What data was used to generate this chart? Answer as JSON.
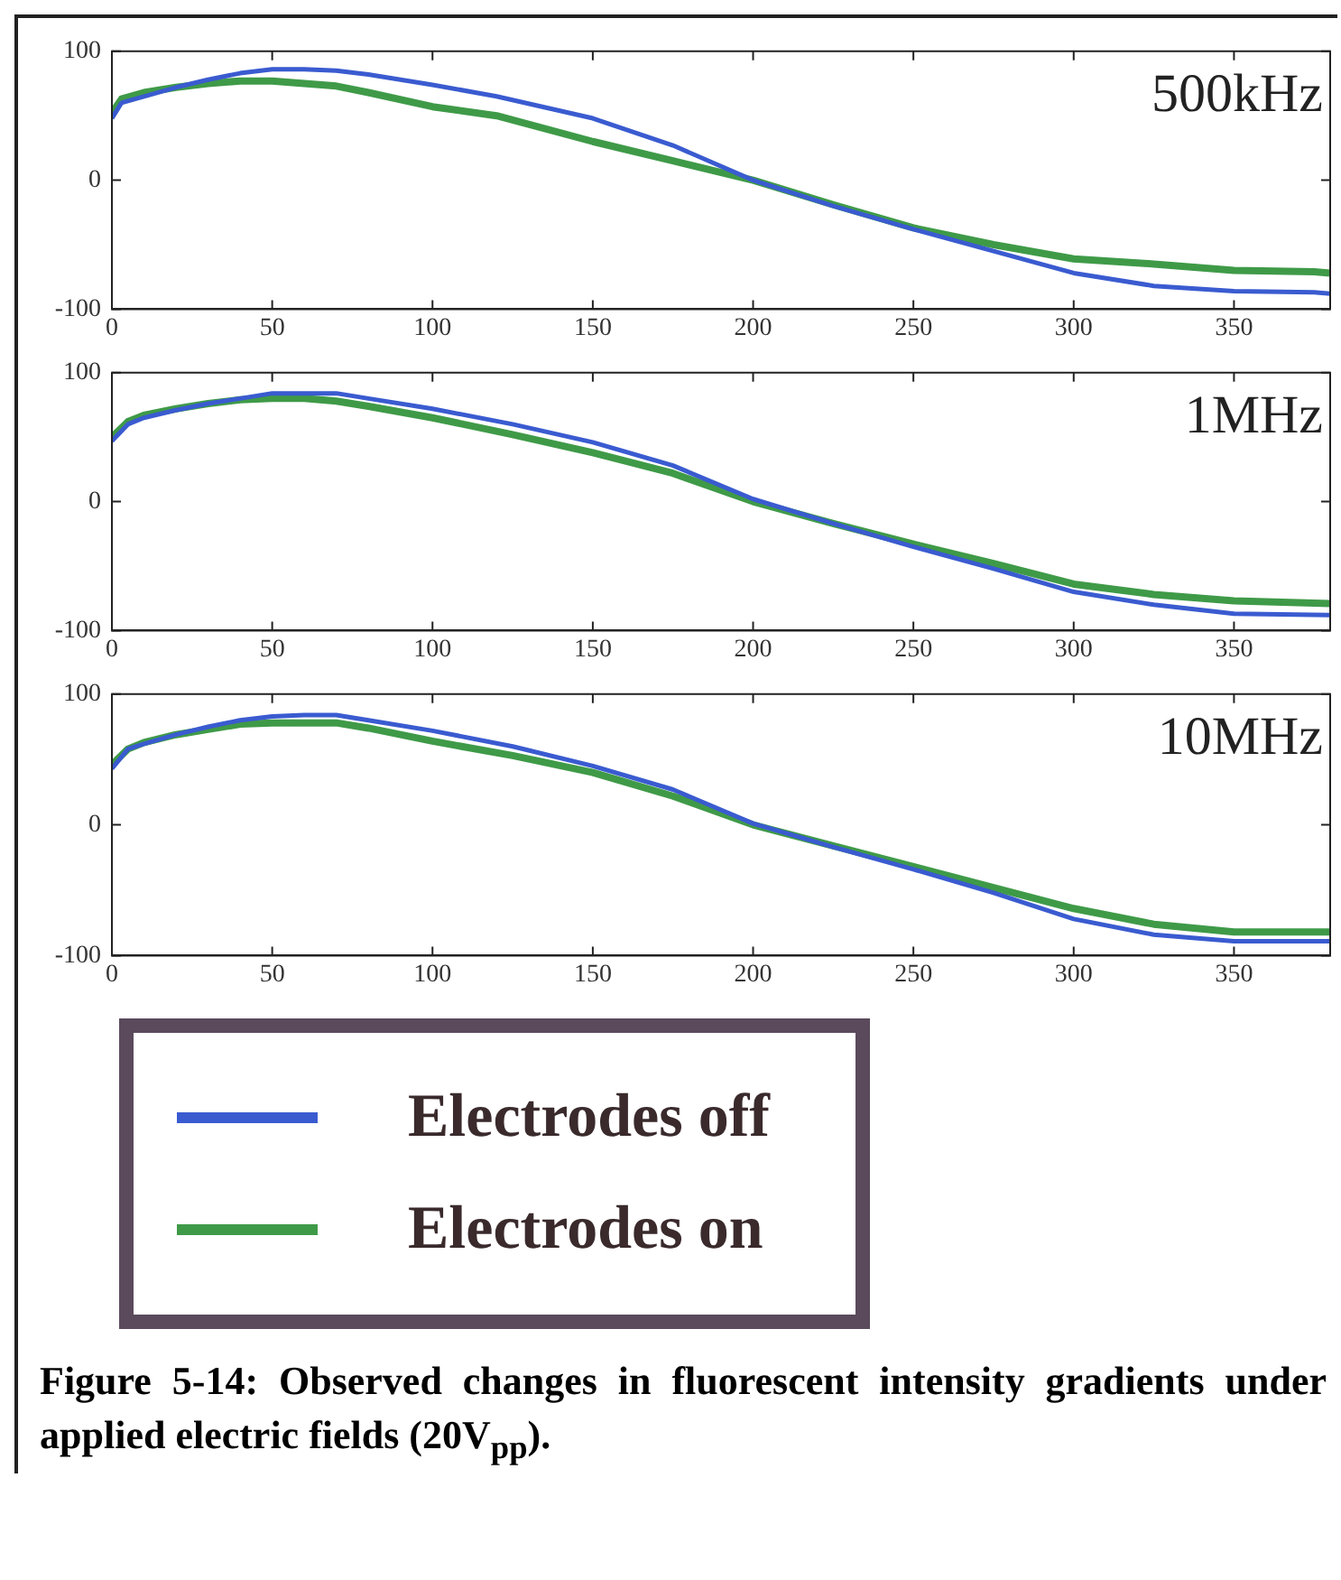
{
  "chart_data": [
    {
      "type": "line",
      "title": "500kHz",
      "x": [
        0,
        3,
        10,
        20,
        30,
        40,
        50,
        60,
        70,
        80,
        100,
        120,
        150,
        175,
        200,
        225,
        250,
        275,
        300,
        325,
        350,
        375,
        380
      ],
      "xlim": [
        0,
        380
      ],
      "xticks": [
        0,
        50,
        100,
        150,
        200,
        250,
        300,
        350
      ],
      "ylim": [
        -100,
        100
      ],
      "yticks": [
        -100,
        0,
        100
      ],
      "grid": false,
      "marker": "none",
      "line_style": "solid",
      "series": [
        {
          "color": "#3a5bd0",
          "values": [
            48,
            60,
            65,
            72,
            78,
            83,
            86,
            86,
            85,
            82,
            74,
            65,
            48,
            27,
            0,
            -20,
            -38,
            -55,
            -72,
            -82,
            -86,
            -87,
            -88
          ]
        },
        {
          "color": "#3f9a48",
          "values": [
            52,
            63,
            68,
            72,
            75,
            77,
            77,
            75,
            73,
            68,
            57,
            50,
            30,
            15,
            0,
            -19,
            -37,
            -50,
            -61,
            -65,
            -70,
            -71,
            -72
          ]
        }
      ]
    },
    {
      "type": "line",
      "title": "1MHz",
      "x": [
        0,
        5,
        10,
        20,
        30,
        40,
        50,
        60,
        70,
        80,
        100,
        125,
        150,
        175,
        200,
        225,
        250,
        275,
        300,
        325,
        350,
        380
      ],
      "xlim": [
        0,
        380
      ],
      "xticks": [
        0,
        50,
        100,
        150,
        200,
        250,
        300,
        350
      ],
      "ylim": [
        -100,
        100
      ],
      "yticks": [
        -100,
        0,
        100
      ],
      "grid": false,
      "marker": "none",
      "line_style": "solid",
      "series": [
        {
          "color": "#3a5bd0",
          "values": [
            47,
            60,
            65,
            71,
            76,
            80,
            84,
            84,
            84,
            80,
            72,
            60,
            46,
            28,
            2,
            -17,
            -35,
            -52,
            -70,
            -80,
            -87,
            -88
          ]
        },
        {
          "color": "#3f9a48",
          "values": [
            50,
            62,
            67,
            72,
            76,
            79,
            80,
            80,
            78,
            74,
            65,
            52,
            38,
            22,
            0,
            -17,
            -33,
            -48,
            -64,
            -72,
            -77,
            -79
          ]
        }
      ]
    },
    {
      "type": "line",
      "title": "10MHz",
      "x": [
        0,
        5,
        10,
        20,
        30,
        40,
        50,
        60,
        70,
        80,
        100,
        125,
        150,
        175,
        200,
        225,
        250,
        275,
        300,
        325,
        350,
        380
      ],
      "xlim": [
        0,
        380
      ],
      "xticks": [
        0,
        50,
        100,
        150,
        200,
        250,
        300,
        350
      ],
      "ylim": [
        -100,
        100
      ],
      "yticks": [
        -100,
        0,
        100
      ],
      "grid": false,
      "marker": "none",
      "line_style": "solid",
      "legend": "bottom",
      "annotations": [
        "Figure 5-14: Observed changes in fluorescent intensity gradients under applied electric fields (20V$_{pp}$)."
      ],
      "series": [
        {
          "name": "Electrodes off",
          "color": "#3a5bd0",
          "values": [
            43,
            58,
            62,
            69,
            75,
            80,
            83,
            84,
            84,
            80,
            72,
            60,
            45,
            27,
            1,
            -17,
            -34,
            -52,
            -72,
            -84,
            -89,
            -89
          ]
        },
        {
          "name": "Electrodes on",
          "color": "#3f9a48",
          "values": [
            46,
            58,
            63,
            69,
            73,
            77,
            78,
            78,
            78,
            74,
            64,
            53,
            40,
            22,
            0,
            -16,
            -32,
            -48,
            -64,
            -76,
            -82,
            -82
          ]
        }
      ]
    }
  ]
}
